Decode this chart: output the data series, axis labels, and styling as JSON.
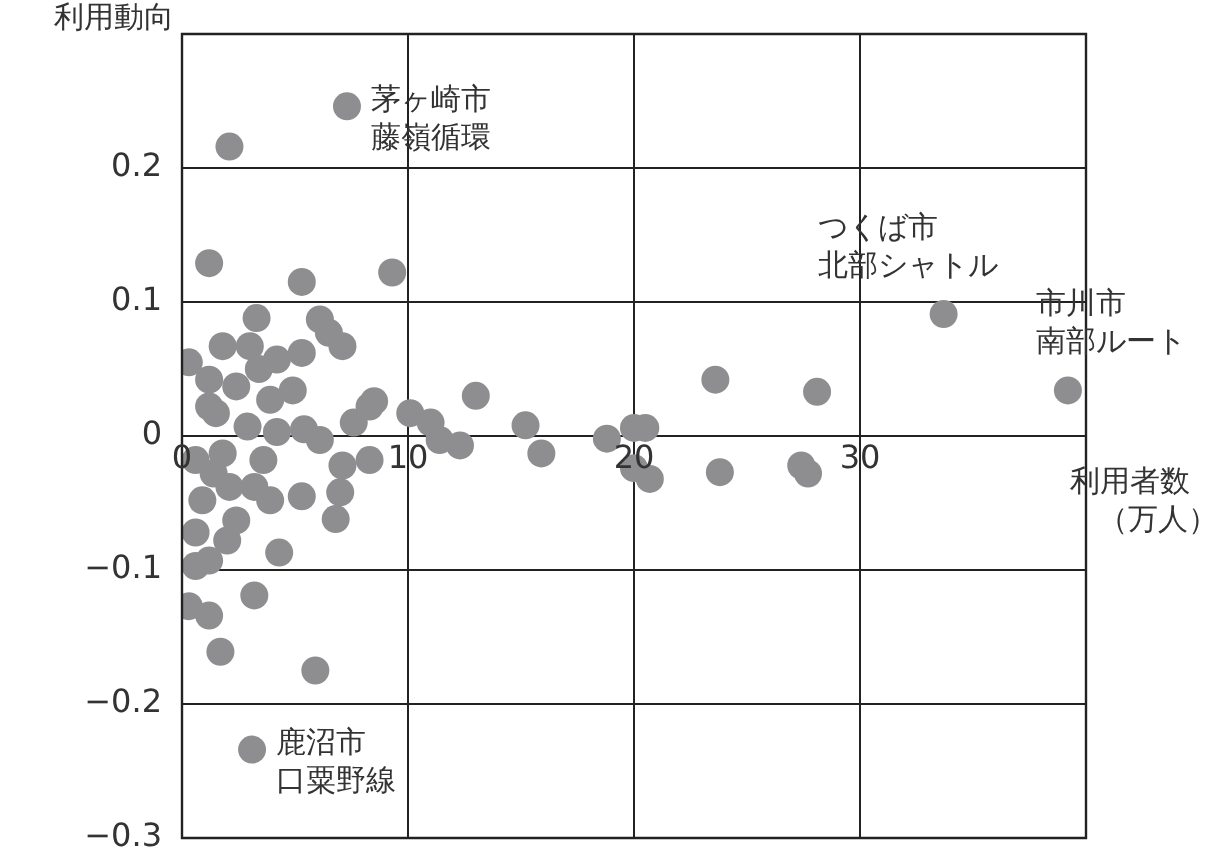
{
  "chart_data": {
    "type": "scatter",
    "ylabel": "利用動向",
    "xlabel": "利用者数（万人）",
    "xlim": [
      0,
      40
    ],
    "xticks": [
      0,
      10,
      20,
      30,
      {
        "value": 40,
        "label": null
      }
    ],
    "ylim": [
      -0.3,
      0.3
    ],
    "yticks": [
      {
        "value": 0.3,
        "label": null
      },
      0.2,
      0.1,
      0,
      {
        "value": -0.1,
        "label": "−0.1"
      },
      {
        "value": -0.2,
        "label": "−0.2"
      },
      {
        "value": -0.3,
        "label": "−0.3"
      }
    ],
    "grid": true,
    "legend": false,
    "marker": "circle",
    "annotations": [
      {
        "text": "茅ヶ崎市",
        "x": 7.3,
        "y": 0.246
      },
      {
        "text": "藤嶺循環",
        "x": 7.3,
        "y": 0.246
      },
      {
        "text": "つくば市",
        "x": 33.7,
        "y": 0.091
      },
      {
        "text": "北部シャトル",
        "x": 33.7,
        "y": 0.091
      },
      {
        "text": "市川市",
        "x": 39.2,
        "y": 0.034
      },
      {
        "text": "南部ルート",
        "x": 39.2,
        "y": 0.034
      },
      {
        "text": "鹿沼市",
        "x": 3.1,
        "y": -0.234
      },
      {
        "text": "口粟野線",
        "x": 3.1,
        "y": -0.234
      }
    ],
    "series": [
      {
        "color": "#8e8e90",
        "x": [
          7.3,
          2.1,
          3.1,
          33.7,
          39.2,
          15.2,
          15.9,
          18.8,
          20.0,
          20.5,
          20.0,
          20.7,
          23.6,
          23.8,
          28.1,
          27.4,
          27.7,
          1.2,
          5.3,
          9.3,
          3.3,
          6.1,
          6.5,
          7.1,
          0.3,
          1.8,
          3.0,
          5.3,
          4.2,
          13.0,
          4.9,
          3.9,
          8.5,
          3.4,
          1.2,
          2.4,
          1.2,
          10.1,
          11.0,
          11.4,
          12.3,
          7.6,
          8.3,
          6.1,
          5.4,
          4.2,
          2.9,
          7.1,
          8.3,
          7.0,
          6.8,
          5.3,
          3.9,
          3.2,
          4.3,
          3.2,
          0.3,
          1.2,
          1.7,
          5.9,
          0.6,
          1.8,
          0.9,
          2.1,
          0.6,
          2.0,
          0.6,
          1.2,
          2.4,
          1.4,
          1.5,
          3.6
        ],
        "values": [
          0.246,
          0.216,
          -0.234,
          0.091,
          0.034,
          0.008,
          -0.013,
          -0.002,
          0.006,
          0.006,
          -0.024,
          -0.032,
          0.042,
          -0.027,
          0.033,
          -0.022,
          -0.028,
          0.129,
          0.115,
          0.122,
          0.088,
          0.087,
          0.077,
          0.067,
          0.055,
          0.067,
          0.067,
          0.062,
          0.057,
          0.03,
          0.034,
          0.027,
          0.026,
          0.05,
          0.042,
          0.037,
          0.022,
          0.017,
          0.01,
          -0.003,
          -0.007,
          0.01,
          0.022,
          -0.003,
          0.005,
          0.003,
          0.007,
          -0.022,
          -0.018,
          -0.042,
          -0.062,
          -0.045,
          -0.048,
          -0.038,
          -0.087,
          -0.119,
          -0.127,
          -0.134,
          -0.161,
          -0.175,
          -0.018,
          -0.013,
          -0.048,
          -0.038,
          -0.072,
          -0.078,
          -0.097,
          -0.093,
          -0.063,
          -0.028,
          0.017,
          -0.018
        ]
      }
    ]
  }
}
